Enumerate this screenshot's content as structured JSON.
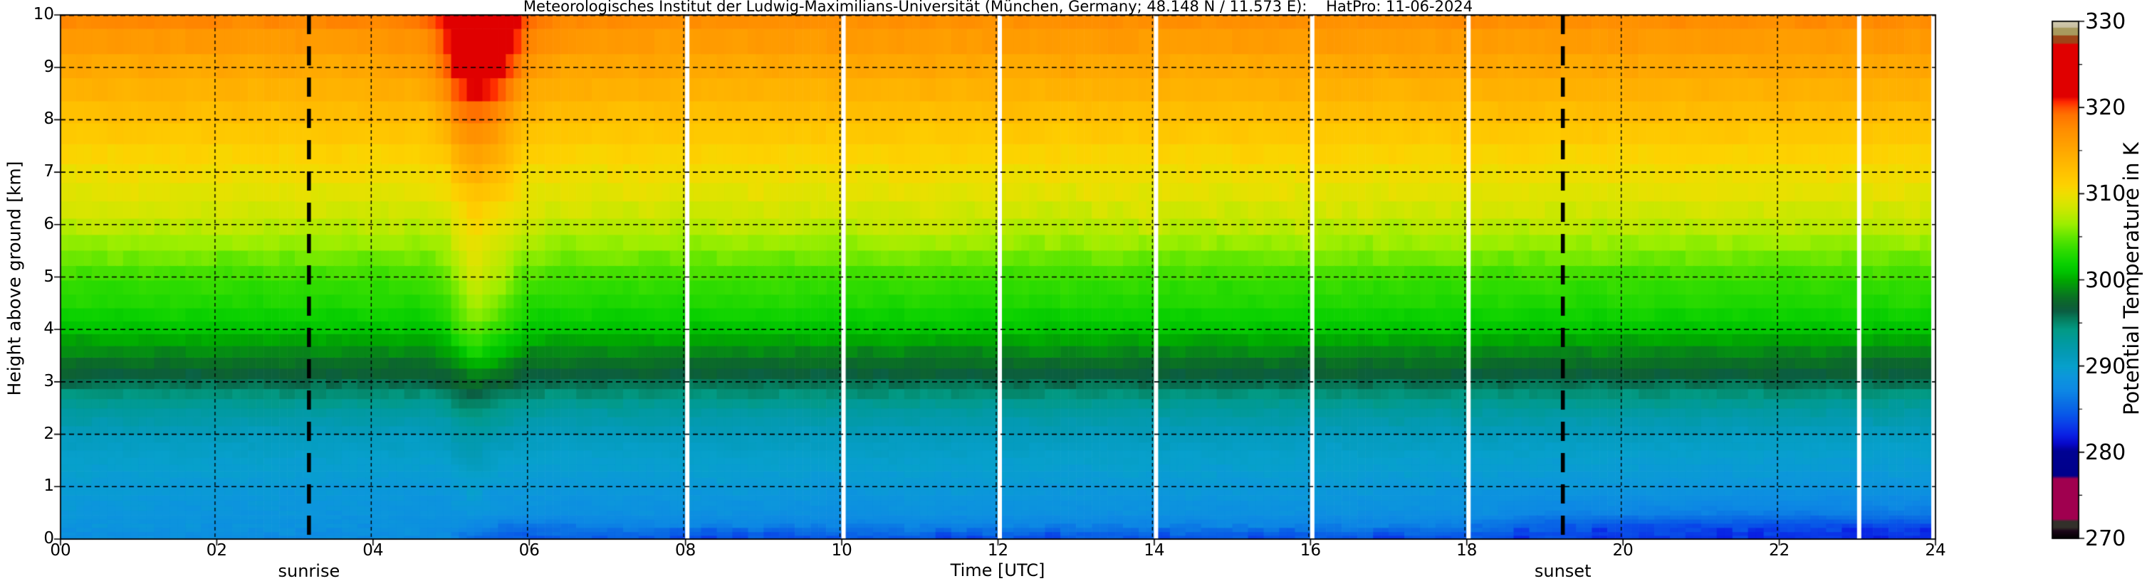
{
  "chart_data": {
    "type": "heatmap",
    "title": "Meteorologisches Institut der Ludwig-Maximilians-Universität (München, Germany; 48.148 N / 11.573 E):    HatPro: 11-06-2024",
    "xlabel": "Time [UTC]",
    "ylabel": "Height above ground [km]",
    "cbar_label": "Potential Temperature in K",
    "x_range_hours": [
      0,
      24
    ],
    "y_range_km": [
      0,
      10
    ],
    "c_range_kelvin": [
      270,
      330
    ],
    "grid_on": true,
    "x_ticks": [
      {
        "hour": 0,
        "label": "00"
      },
      {
        "hour": 2,
        "label": "02"
      },
      {
        "hour": 4,
        "label": "04"
      },
      {
        "hour": 6,
        "label": "06"
      },
      {
        "hour": 8,
        "label": "08"
      },
      {
        "hour": 10,
        "label": "10"
      },
      {
        "hour": 12,
        "label": "12"
      },
      {
        "hour": 14,
        "label": "14"
      },
      {
        "hour": 16,
        "label": "16"
      },
      {
        "hour": 18,
        "label": "18"
      },
      {
        "hour": 20,
        "label": "20"
      },
      {
        "hour": 22,
        "label": "22"
      },
      {
        "hour": 24,
        "label": "24"
      }
    ],
    "y_ticks": [
      {
        "km": 0,
        "label": "0"
      },
      {
        "km": 1,
        "label": "1"
      },
      {
        "km": 2,
        "label": "2"
      },
      {
        "km": 3,
        "label": "3"
      },
      {
        "km": 4,
        "label": "4"
      },
      {
        "km": 5,
        "label": "5"
      },
      {
        "km": 6,
        "label": "6"
      },
      {
        "km": 7,
        "label": "7"
      },
      {
        "km": 8,
        "label": "8"
      },
      {
        "km": 9,
        "label": "9"
      },
      {
        "km": 10,
        "label": "10"
      }
    ],
    "cbar_ticks": [
      {
        "value": 330,
        "label": "330"
      },
      {
        "value": 320,
        "label": "320"
      },
      {
        "value": 310,
        "label": "310"
      },
      {
        "value": 300,
        "label": "300"
      },
      {
        "value": 290,
        "label": "290"
      },
      {
        "value": 280,
        "label": "280"
      },
      {
        "value": 270,
        "label": "270"
      }
    ],
    "cbar_minor_tick_values": [
      325,
      315,
      305,
      295,
      285,
      275
    ],
    "annotations": [
      {
        "label": "sunrise",
        "hour": 3.18
      },
      {
        "label": "sunset",
        "hour": 19.23
      }
    ],
    "grid_hours": [
      2,
      4,
      6,
      8,
      10,
      12,
      14,
      16,
      18,
      20,
      22
    ],
    "grid_heights_km": [
      1,
      2,
      3,
      4,
      5,
      6,
      7,
      8,
      9
    ],
    "gap_line_hours": [
      8,
      10,
      12,
      14,
      16,
      18,
      23,
      23.95
    ],
    "colors": {
      "background": "#ffffff",
      "frame": "#000000",
      "grid": "#000000",
      "gap_line": "#ffffff",
      "annotation_line": "#000000"
    },
    "colormap_stops": [
      [
        330.0,
        "#d2cbb0"
      ],
      [
        329.35,
        "#c8bfa0"
      ],
      [
        329.25,
        "#a89a5e"
      ],
      [
        328.45,
        "#a89a5e"
      ],
      [
        328.35,
        "#9e4518"
      ],
      [
        327.55,
        "#9e4518"
      ],
      [
        327.35,
        "#e00000"
      ],
      [
        321.3,
        "#e00000"
      ],
      [
        320.7,
        "#ff2800"
      ],
      [
        320.0,
        "#ff5200"
      ],
      [
        319.2,
        "#ff7200"
      ],
      [
        317.5,
        "#ff8e00"
      ],
      [
        315.0,
        "#ffa800"
      ],
      [
        312.5,
        "#ffc200"
      ],
      [
        311.0,
        "#fdd200"
      ],
      [
        310.0,
        "#eede00"
      ],
      [
        309.0,
        "#dce400"
      ],
      [
        308.0,
        "#c6e800"
      ],
      [
        306.5,
        "#9cee00"
      ],
      [
        305.0,
        "#60e600"
      ],
      [
        303.5,
        "#30dc00"
      ],
      [
        302.0,
        "#0cd200"
      ],
      [
        301.0,
        "#00c400"
      ],
      [
        300.0,
        "#00a800"
      ],
      [
        299.0,
        "#058c14"
      ],
      [
        298.0,
        "#0a7024"
      ],
      [
        297.0,
        "#0d6034"
      ],
      [
        296.4,
        "#0b5e42"
      ],
      [
        295.6,
        "#067a5a"
      ],
      [
        294.3,
        "#029a84"
      ],
      [
        292.8,
        "#019aa0"
      ],
      [
        291.3,
        "#049ab8"
      ],
      [
        290.0,
        "#07a0cc"
      ],
      [
        288.8,
        "#0c96dc"
      ],
      [
        287.2,
        "#0d88e4"
      ],
      [
        285.8,
        "#0a70e4"
      ],
      [
        284.4,
        "#0858e8"
      ],
      [
        283.2,
        "#0a3ce8"
      ],
      [
        282.0,
        "#0920e4"
      ],
      [
        281.0,
        "#0708c8"
      ],
      [
        280.4,
        "#0301a0"
      ],
      [
        280.1,
        "#000292"
      ],
      [
        277.3,
        "#00008a"
      ],
      [
        276.95,
        "#a0004f"
      ],
      [
        272.3,
        "#a0004f"
      ],
      [
        272.0,
        "#32302a"
      ],
      [
        271.3,
        "#32302a"
      ],
      [
        270.9,
        "#1c0618"
      ],
      [
        270.0,
        "#000000"
      ]
    ],
    "levels_km": [
      0,
      0.25,
      0.5,
      1,
      1.5,
      2,
      2.5,
      3,
      3.5,
      4,
      4.5,
      5,
      5.5,
      6,
      6.5,
      7,
      7.5,
      8,
      8.5,
      9,
      9.5,
      10
    ],
    "times_hours": [
      0,
      1,
      2,
      3,
      4,
      4.7,
      4.95,
      5.05,
      5.3,
      5.6,
      5.95,
      6.3,
      7,
      8,
      9,
      10,
      11,
      12,
      13,
      14,
      15,
      16,
      17,
      18,
      19,
      20,
      21,
      22,
      23,
      24
    ],
    "theta_kelvin": [
      [
        288.2,
        288.6,
        288.9,
        289.4,
        290.1,
        291.1,
        293.1,
        296.0,
        298.4,
        300.9,
        302.7,
        303.7,
        305.8,
        307.6,
        309.1,
        310.1,
        311.1,
        312.6,
        313.8,
        314.9,
        316.3,
        318.3
      ],
      [
        288.0,
        288.5,
        288.8,
        289.3,
        290.0,
        291.0,
        293.0,
        296.0,
        298.4,
        301.0,
        302.8,
        303.8,
        305.9,
        307.7,
        309.2,
        310.2,
        311.2,
        312.7,
        313.9,
        315.0,
        316.4,
        318.2
      ],
      [
        287.8,
        288.4,
        288.7,
        289.2,
        290.0,
        291.0,
        293.0,
        296.0,
        298.4,
        301.0,
        302.8,
        303.8,
        305.9,
        307.7,
        309.2,
        310.2,
        311.2,
        312.7,
        313.9,
        315.0,
        316.4,
        318.3
      ],
      [
        287.6,
        288.3,
        288.7,
        289.2,
        289.9,
        290.9,
        293.0,
        296.1,
        298.5,
        301.0,
        302.8,
        303.8,
        305.9,
        307.7,
        309.2,
        310.2,
        311.2,
        312.7,
        313.9,
        315.0,
        316.4,
        318.4
      ],
      [
        287.7,
        288.3,
        288.6,
        289.1,
        289.9,
        290.9,
        293.0,
        296.1,
        298.5,
        301.0,
        302.8,
        303.8,
        305.8,
        307.6,
        309.1,
        310.2,
        311.3,
        312.8,
        314.0,
        315.1,
        316.5,
        318.6
      ],
      [
        287.8,
        288.2,
        288.5,
        289.0,
        289.8,
        290.8,
        293.0,
        296.2,
        298.6,
        301.1,
        302.9,
        303.9,
        305.9,
        307.7,
        309.2,
        310.3,
        311.5,
        313.1,
        314.6,
        316.0,
        317.5,
        319.6
      ],
      [
        287.9,
        288.1,
        288.5,
        289.1,
        290.0,
        291.3,
        293.5,
        296.5,
        299.2,
        302.0,
        303.8,
        305.2,
        306.8,
        308.2,
        309.8,
        311.2,
        313.0,
        315.0,
        317.2,
        319.5,
        321.0,
        321.8
      ],
      [
        287.0,
        287.8,
        288.6,
        289.4,
        290.4,
        291.9,
        294.2,
        297.0,
        300.2,
        303.2,
        305.0,
        306.5,
        307.8,
        309.2,
        310.8,
        312.5,
        314.5,
        316.8,
        319.5,
        322.5,
        324.5,
        325.5
      ],
      [
        285.0,
        287.2,
        288.8,
        289.8,
        291.0,
        292.6,
        295.2,
        297.8,
        301.8,
        305.0,
        307.2,
        308.6,
        309.6,
        310.6,
        312.2,
        314.2,
        316.5,
        318.8,
        321.5,
        323.5,
        325.2,
        326.0
      ],
      [
        284.6,
        286.6,
        288.4,
        289.2,
        290.2,
        291.7,
        294.0,
        297.2,
        300.6,
        303.6,
        305.6,
        307.2,
        308.4,
        309.6,
        311.2,
        313.0,
        315.0,
        317.2,
        320.0,
        322.8,
        324.8,
        325.8
      ],
      [
        284.2,
        285.9,
        288.3,
        289.1,
        290.0,
        291.1,
        293.2,
        296.2,
        298.7,
        301.3,
        303.2,
        304.6,
        306.4,
        308.2,
        309.5,
        310.6,
        311.8,
        313.2,
        314.8,
        317.0,
        319.0,
        320.5
      ],
      [
        284.8,
        286.4,
        288.0,
        289.0,
        289.8,
        290.9,
        293.0,
        296.1,
        298.5,
        301.0,
        302.8,
        303.9,
        305.9,
        307.7,
        309.2,
        310.3,
        311.4,
        312.9,
        314.2,
        315.3,
        316.7,
        318.3
      ],
      [
        284.4,
        286.6,
        288.1,
        289.1,
        289.9,
        291.0,
        293.0,
        296.0,
        298.4,
        301.0,
        302.8,
        303.8,
        305.9,
        307.7,
        309.2,
        310.2,
        311.2,
        312.7,
        314.0,
        315.0,
        316.3,
        317.9
      ],
      [
        284.3,
        286.8,
        288.2,
        289.2,
        290.0,
        291.0,
        293.0,
        296.0,
        298.4,
        301.0,
        302.8,
        303.8,
        305.8,
        307.5,
        309.0,
        310.1,
        311.2,
        312.7,
        313.9,
        314.9,
        316.2,
        317.7
      ],
      [
        284.4,
        286.9,
        288.2,
        289.2,
        290.0,
        291.0,
        293.0,
        296.0,
        298.4,
        301.0,
        302.8,
        303.9,
        306.0,
        307.9,
        309.3,
        310.3,
        311.2,
        312.7,
        313.9,
        314.9,
        316.2,
        317.7
      ],
      [
        284.2,
        286.7,
        288.1,
        289.1,
        290.0,
        291.0,
        293.0,
        296.0,
        298.4,
        301.0,
        302.8,
        303.8,
        305.8,
        307.6,
        309.1,
        310.2,
        311.2,
        312.7,
        313.9,
        314.9,
        316.2,
        317.7
      ],
      [
        284.3,
        286.8,
        288.2,
        289.2,
        290.0,
        291.0,
        293.0,
        296.0,
        298.4,
        301.0,
        302.8,
        303.9,
        306.0,
        308.0,
        309.4,
        310.3,
        311.3,
        312.7,
        313.9,
        315.0,
        316.2,
        317.7
      ],
      [
        284.2,
        286.8,
        288.2,
        289.2,
        290.0,
        291.0,
        293.0,
        296.0,
        298.4,
        301.0,
        302.8,
        303.8,
        305.9,
        307.7,
        309.2,
        310.2,
        311.2,
        312.7,
        313.9,
        315.0,
        316.2,
        317.7
      ],
      [
        284.3,
        286.7,
        288.1,
        289.1,
        290.0,
        291.0,
        293.0,
        296.0,
        298.4,
        301.0,
        302.8,
        303.7,
        305.7,
        307.4,
        309.0,
        310.1,
        311.2,
        312.6,
        313.9,
        314.9,
        316.2,
        317.7
      ],
      [
        284.2,
        286.8,
        288.2,
        289.2,
        290.0,
        291.0,
        293.0,
        296.0,
        298.4,
        301.0,
        302.8,
        303.8,
        305.9,
        307.8,
        309.3,
        310.2,
        311.2,
        312.7,
        313.9,
        315.0,
        316.2,
        317.7
      ],
      [
        284.3,
        286.8,
        288.2,
        289.2,
        290.0,
        291.0,
        293.0,
        296.0,
        298.4,
        301.0,
        302.8,
        303.8,
        305.8,
        307.5,
        309.1,
        310.1,
        311.2,
        312.7,
        313.9,
        314.9,
        316.2,
        317.7
      ],
      [
        284.2,
        286.8,
        288.2,
        289.2,
        290.0,
        291.0,
        293.0,
        296.0,
        298.4,
        301.0,
        302.8,
        303.9,
        306.0,
        307.9,
        309.3,
        310.3,
        311.2,
        312.7,
        313.9,
        315.0,
        316.2,
        317.7
      ],
      [
        284.3,
        286.7,
        288.1,
        289.1,
        290.0,
        291.0,
        293.0,
        296.0,
        298.4,
        301.0,
        302.8,
        303.8,
        305.9,
        307.6,
        309.1,
        310.2,
        311.2,
        312.7,
        313.9,
        314.9,
        316.2,
        317.7
      ],
      [
        284.0,
        286.4,
        288.0,
        289.0,
        289.9,
        291.0,
        293.0,
        296.0,
        298.4,
        301.0,
        302.8,
        303.8,
        305.9,
        307.7,
        309.2,
        310.2,
        311.2,
        312.7,
        313.9,
        315.0,
        316.2,
        317.8
      ],
      [
        283.6,
        284.8,
        287.0,
        288.9,
        289.8,
        290.9,
        293.0,
        296.0,
        298.4,
        301.0,
        302.8,
        303.8,
        305.8,
        307.6,
        309.1,
        310.2,
        311.2,
        312.7,
        313.9,
        315.0,
        316.2,
        317.8
      ],
      [
        283.2,
        284.2,
        286.8,
        288.8,
        289.8,
        290.8,
        292.9,
        296.0,
        298.4,
        301.0,
        302.8,
        303.8,
        305.8,
        307.6,
        309.1,
        310.2,
        311.2,
        312.7,
        313.9,
        315.0,
        316.3,
        317.9
      ],
      [
        283.1,
        284.0,
        286.7,
        288.8,
        289.7,
        290.8,
        292.9,
        296.0,
        298.4,
        301.0,
        302.8,
        303.8,
        305.9,
        307.7,
        309.2,
        310.2,
        311.3,
        312.8,
        314.0,
        315.1,
        316.3,
        317.9
      ],
      [
        283.0,
        283.9,
        286.6,
        288.7,
        289.7,
        290.7,
        292.9,
        296.0,
        298.4,
        301.0,
        302.8,
        303.8,
        305.9,
        307.7,
        309.2,
        310.3,
        311.3,
        312.8,
        314.0,
        315.1,
        316.3,
        317.9
      ],
      [
        283.0,
        283.8,
        286.5,
        288.7,
        289.6,
        290.7,
        292.8,
        295.9,
        298.3,
        300.9,
        302.8,
        303.8,
        305.9,
        307.7,
        309.2,
        310.3,
        311.3,
        312.8,
        314.0,
        315.1,
        316.3,
        317.9
      ],
      [
        282.9,
        283.8,
        286.5,
        288.6,
        289.6,
        290.7,
        292.8,
        295.9,
        298.3,
        300.9,
        302.8,
        303.8,
        305.9,
        307.7,
        309.2,
        310.3,
        311.3,
        312.8,
        314.0,
        315.1,
        316.3,
        317.9
      ]
    ]
  }
}
